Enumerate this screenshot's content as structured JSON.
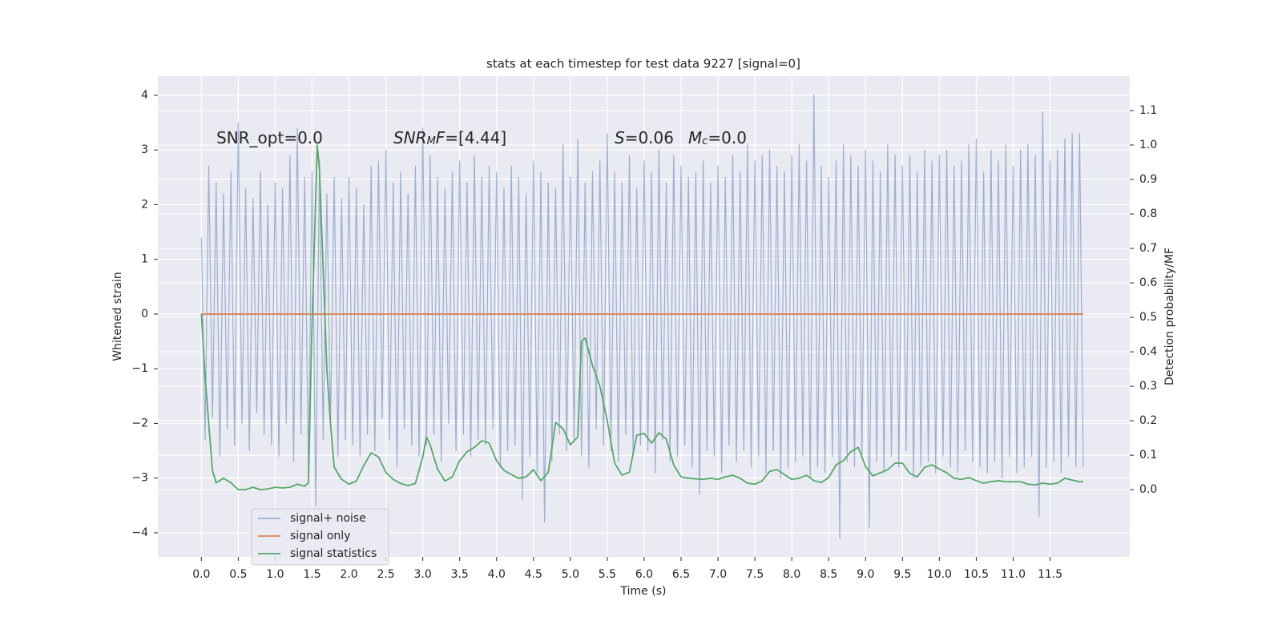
{
  "chart_data": {
    "type": "line",
    "title": "stats at each timestep for test data 9227 [signal=0]",
    "xlabel": "Time (s)",
    "ylabel": "Whitened strain",
    "y2label": "Detection probability/MF",
    "xlim": [
      -0.59,
      12.58
    ],
    "ylim": [
      -4.44,
      4.35
    ],
    "y2lim": [
      -0.195,
      1.2
    ],
    "xticks": [
      {
        "value": 0,
        "label": "0.0"
      },
      0.5,
      {
        "value": 1,
        "label": "1.0"
      },
      1.5,
      {
        "value": 2,
        "label": "2.0"
      },
      2.5,
      {
        "value": 3,
        "label": "3.0"
      },
      3.5,
      {
        "value": 4,
        "label": "4.0"
      },
      4.5,
      {
        "value": 5,
        "label": "5.0"
      },
      5.5,
      {
        "value": 6,
        "label": "6.0"
      },
      6.5,
      {
        "value": 7,
        "label": "7.0"
      },
      7.5,
      {
        "value": 8,
        "label": "8.0"
      },
      8.5,
      {
        "value": 9,
        "label": "9.0"
      },
      9.5,
      {
        "value": 10,
        "label": "10.0"
      },
      10.5,
      {
        "value": 11,
        "label": "11.0"
      },
      11.5
    ],
    "yticks": [
      {
        "value": -4,
        "label": "−4"
      },
      {
        "value": -3,
        "label": "−3"
      },
      {
        "value": -2,
        "label": "−2"
      },
      {
        "value": -1,
        "label": "−1"
      },
      0,
      1,
      2,
      3,
      4
    ],
    "y2ticks": [
      {
        "value": 0,
        "label": "0.0"
      },
      0.1,
      0.2,
      0.3,
      0.4,
      0.5,
      0.6,
      0.7,
      0.8,
      0.9,
      {
        "value": 1,
        "label": "1.0"
      },
      1.1
    ],
    "grid": true,
    "legend": "lower left",
    "annotations": [
      {
        "parts": [
          {
            "text": "SNR_opt=0.0",
            "style": "normal"
          }
        ]
      },
      {
        "parts": [
          {
            "text": "SNR",
            "style": "italic"
          },
          {
            "text": "M",
            "style": "sub"
          },
          {
            "text": "F",
            "style": "italic"
          },
          {
            "text": "=[4.44]",
            "style": "normal"
          }
        ]
      },
      {
        "parts": [
          {
            "text": "S",
            "style": "italic"
          },
          {
            "text": "=0.06",
            "style": "normal"
          }
        ]
      },
      {
        "parts": [
          {
            "text": "M",
            "style": "italic"
          },
          {
            "text": "c",
            "style": "sub"
          },
          {
            "text": "=0.0",
            "style": "normal"
          }
        ]
      }
    ],
    "series": [
      {
        "name": "signal+ noise",
        "color": "#4c72b0",
        "opacity": 0.5,
        "x": [
          0,
          0.05,
          0.1,
          0.15,
          0.2,
          0.25,
          0.3,
          0.35,
          0.4,
          0.45,
          0.5,
          0.55,
          0.6,
          0.65,
          0.7,
          0.75,
          0.8,
          0.85,
          0.9,
          0.95,
          1,
          1.05,
          1.1,
          1.15,
          1.2,
          1.25,
          1.3,
          1.35,
          1.4,
          1.45,
          1.5,
          1.55,
          1.6,
          1.65,
          1.7,
          1.75,
          1.8,
          1.85,
          1.9,
          1.95,
          2,
          2.05,
          2.1,
          2.15,
          2.2,
          2.25,
          2.3,
          2.35,
          2.4,
          2.45,
          2.5,
          2.55,
          2.6,
          2.65,
          2.7,
          2.75,
          2.8,
          2.85,
          2.9,
          2.95,
          3,
          3.05,
          3.1,
          3.15,
          3.2,
          3.25,
          3.3,
          3.35,
          3.4,
          3.45,
          3.5,
          3.55,
          3.6,
          3.65,
          3.7,
          3.75,
          3.8,
          3.85,
          3.9,
          3.95,
          4,
          4.05,
          4.1,
          4.15,
          4.2,
          4.25,
          4.3,
          4.35,
          4.4,
          4.45,
          4.5,
          4.55,
          4.6,
          4.65,
          4.7,
          4.75,
          4.8,
          4.85,
          4.9,
          4.95,
          5,
          5.05,
          5.1,
          5.15,
          5.2,
          5.25,
          5.3,
          5.35,
          5.4,
          5.45,
          5.5,
          5.55,
          5.6,
          5.65,
          5.7,
          5.75,
          5.8,
          5.85,
          5.9,
          5.95,
          6,
          6.05,
          6.1,
          6.15,
          6.2,
          6.25,
          6.3,
          6.35,
          6.4,
          6.45,
          6.5,
          6.55,
          6.6,
          6.65,
          6.7,
          6.75,
          6.8,
          6.85,
          6.9,
          6.95,
          7,
          7.05,
          7.1,
          7.15,
          7.2,
          7.25,
          7.3,
          7.35,
          7.4,
          7.45,
          7.5,
          7.55,
          7.6,
          7.65,
          7.7,
          7.75,
          7.8,
          7.85,
          7.9,
          7.95,
          8,
          8.05,
          8.1,
          8.15,
          8.2,
          8.25,
          8.3,
          8.35,
          8.4,
          8.45,
          8.5,
          8.55,
          8.6,
          8.65,
          8.7,
          8.75,
          8.8,
          8.85,
          8.9,
          8.95,
          9,
          9.05,
          9.1,
          9.15,
          9.2,
          9.25,
          9.3,
          9.35,
          9.4,
          9.45,
          9.5,
          9.55,
          9.6,
          9.65,
          9.7,
          9.75,
          9.8,
          9.85,
          9.9,
          9.95,
          10,
          10.05,
          10.1,
          10.15,
          10.2,
          10.25,
          10.3,
          10.35,
          10.4,
          10.45,
          10.5,
          10.55,
          10.6,
          10.65,
          10.7,
          10.75,
          10.8,
          10.85,
          10.9,
          10.95,
          11,
          11.05,
          11.1,
          11.15,
          11.2,
          11.25,
          11.3,
          11.35,
          11.4,
          11.45,
          11.5,
          11.55,
          11.6,
          11.65,
          11.7,
          11.75,
          11.8,
          11.85,
          11.9,
          11.95
        ],
        "values": [
          1.4,
          -2.3,
          2.7,
          -1.9,
          2.4,
          -2.6,
          2.2,
          -2.1,
          2.6,
          -2.4,
          3.5,
          -2.0,
          2.3,
          -2.5,
          2.1,
          -1.8,
          2.6,
          -2.2,
          2.0,
          -2.4,
          2.4,
          -2.6,
          2.3,
          -2.0,
          2.9,
          -2.7,
          3.4,
          -2.2,
          2.5,
          -2.9,
          2.6,
          -3.5,
          2.8,
          -2.3,
          2.2,
          -2.0,
          2.5,
          -2.6,
          2.1,
          -2.3,
          2.5,
          -2.4,
          2.3,
          -2.6,
          2.0,
          -2.2,
          2.7,
          -2.5,
          2.8,
          -1.9,
          3.0,
          -2.3,
          2.4,
          -2.8,
          2.6,
          -2.1,
          2.2,
          -2.4,
          2.7,
          -2.6,
          3.4,
          -2.4,
          2.9,
          -2.2,
          2.5,
          -2.7,
          2.3,
          -2.0,
          2.6,
          -2.5,
          2.8,
          -2.2,
          2.4,
          -2.6,
          2.9,
          -2.3,
          2.5,
          -2.4,
          2.7,
          -2.1,
          2.6,
          -2.8,
          2.3,
          -2.5,
          2.7,
          -2.4,
          2.5,
          -3.4,
          2.2,
          -2.6,
          2.8,
          -2.9,
          2.6,
          -3.8,
          2.4,
          -2.7,
          2.3,
          -2.2,
          3.1,
          -2.5,
          2.5,
          -2.3,
          3.2,
          -2.6,
          2.4,
          -2.8,
          2.6,
          -2.1,
          2.8,
          -2.4,
          3.3,
          -2.5,
          2.6,
          -2.7,
          2.4,
          -2.2,
          2.9,
          -2.6,
          2.3,
          -2.4,
          2.8,
          -2.5,
          2.6,
          -2.9,
          3.0,
          -2.3,
          2.4,
          -2.7,
          2.9,
          -2.6,
          2.7,
          -2.4,
          2.5,
          -2.8,
          2.6,
          -3.3,
          2.8,
          -2.5,
          2.4,
          -2.6,
          2.7,
          -2.9,
          2.5,
          -2.4,
          2.9,
          -2.7,
          2.6,
          -2.5,
          3.1,
          -2.8,
          2.8,
          -2.6,
          2.9,
          -2.9,
          3.0,
          -2.5,
          2.7,
          -3.0,
          2.6,
          -2.8,
          2.9,
          -2.7,
          3.1,
          -2.6,
          2.8,
          -3.0,
          4.0,
          -2.8,
          2.7,
          -2.9,
          2.5,
          -2.6,
          2.8,
          -4.1,
          3.1,
          -2.7,
          2.9,
          -2.8,
          2.7,
          -2.6,
          3.0,
          -3.9,
          2.8,
          -2.7,
          2.6,
          -2.9,
          3.1,
          -2.6,
          2.9,
          -2.8,
          2.7,
          -2.5,
          2.9,
          -3.0,
          2.6,
          -2.8,
          3.0,
          -2.7,
          2.8,
          -2.9,
          2.9,
          -2.6,
          3.0,
          -2.8,
          2.7,
          -2.9,
          2.8,
          -2.5,
          3.1,
          -2.7,
          3.2,
          -2.8,
          2.6,
          -2.9,
          3.0,
          -2.7,
          2.8,
          -3.0,
          3.1,
          -2.6,
          2.7,
          -2.9,
          3.0,
          -2.8,
          3.1,
          -2.6,
          2.9,
          -3.7,
          3.7,
          -2.8,
          2.8,
          -2.7,
          3.0,
          -2.9,
          3.2,
          -2.6,
          3.3,
          -2.8,
          3.3,
          -2.8
        ]
      },
      {
        "name": "signal only",
        "color": "#dd8452",
        "opacity": 1,
        "x": [
          0,
          11.95
        ],
        "values": [
          0,
          0
        ]
      },
      {
        "name": "signal statistics",
        "color": "#55a868",
        "opacity": 1,
        "axis": "y2",
        "x": [
          0,
          0.05,
          0.1,
          0.15,
          0.2,
          0.3,
          0.4,
          0.5,
          0.6,
          0.7,
          0.8,
          0.9,
          1.0,
          1.1,
          1.2,
          1.3,
          1.4,
          1.45,
          1.5,
          1.57,
          1.6,
          1.7,
          1.75,
          1.8,
          1.9,
          2.0,
          2.1,
          2.2,
          2.3,
          2.4,
          2.5,
          2.6,
          2.7,
          2.8,
          2.9,
          3.0,
          3.05,
          3.1,
          3.2,
          3.3,
          3.4,
          3.5,
          3.6,
          3.7,
          3.8,
          3.9,
          4.0,
          4.1,
          4.2,
          4.3,
          4.4,
          4.5,
          4.6,
          4.7,
          4.8,
          4.9,
          5.0,
          5.1,
          5.15,
          5.2,
          5.3,
          5.4,
          5.5,
          5.6,
          5.7,
          5.8,
          5.9,
          6.0,
          6.1,
          6.2,
          6.3,
          6.4,
          6.5,
          6.6,
          6.8,
          6.9,
          7.0,
          7.1,
          7.2,
          7.3,
          7.4,
          7.5,
          7.6,
          7.7,
          7.8,
          7.9,
          8.0,
          8.1,
          8.2,
          8.3,
          8.4,
          8.5,
          8.6,
          8.7,
          8.8,
          8.9,
          9.0,
          9.1,
          9.2,
          9.3,
          9.4,
          9.5,
          9.6,
          9.7,
          9.8,
          9.9,
          10.0,
          10.1,
          10.2,
          10.3,
          10.4,
          10.5,
          10.6,
          10.7,
          10.8,
          10.9,
          11.0,
          11.1,
          11.2,
          11.3,
          11.4,
          11.5,
          11.6,
          11.7,
          11.8,
          11.9,
          11.95
        ],
        "values": [
          0.51,
          0.33,
          0.19,
          0.056,
          0.02,
          0.033,
          0.02,
          0.0,
          0.0,
          0.007,
          0.0,
          0.002,
          0.007,
          0.005,
          0.007,
          0.016,
          0.01,
          0.02,
          0.49,
          1.0,
          0.93,
          0.35,
          0.19,
          0.065,
          0.03,
          0.016,
          0.025,
          0.07,
          0.107,
          0.095,
          0.05,
          0.03,
          0.018,
          0.012,
          0.018,
          0.095,
          0.153,
          0.13,
          0.06,
          0.025,
          0.037,
          0.084,
          0.11,
          0.123,
          0.142,
          0.135,
          0.084,
          0.056,
          0.044,
          0.033,
          0.037,
          0.058,
          0.026,
          0.05,
          0.195,
          0.177,
          0.13,
          0.153,
          0.43,
          0.44,
          0.36,
          0.3,
          0.2,
          0.077,
          0.042,
          0.051,
          0.158,
          0.163,
          0.135,
          0.165,
          0.147,
          0.072,
          0.037,
          0.033,
          0.03,
          0.033,
          0.03,
          0.037,
          0.042,
          0.033,
          0.019,
          0.016,
          0.026,
          0.053,
          0.058,
          0.044,
          0.03,
          0.033,
          0.042,
          0.026,
          0.021,
          0.035,
          0.072,
          0.084,
          0.11,
          0.123,
          0.067,
          0.04,
          0.049,
          0.058,
          0.077,
          0.077,
          0.047,
          0.037,
          0.065,
          0.072,
          0.06,
          0.049,
          0.033,
          0.03,
          0.035,
          0.026,
          0.019,
          0.023,
          0.026,
          0.023,
          0.023,
          0.023,
          0.016,
          0.014,
          0.019,
          0.016,
          0.019,
          0.033,
          0.028,
          0.023,
          0.023
        ]
      }
    ]
  }
}
